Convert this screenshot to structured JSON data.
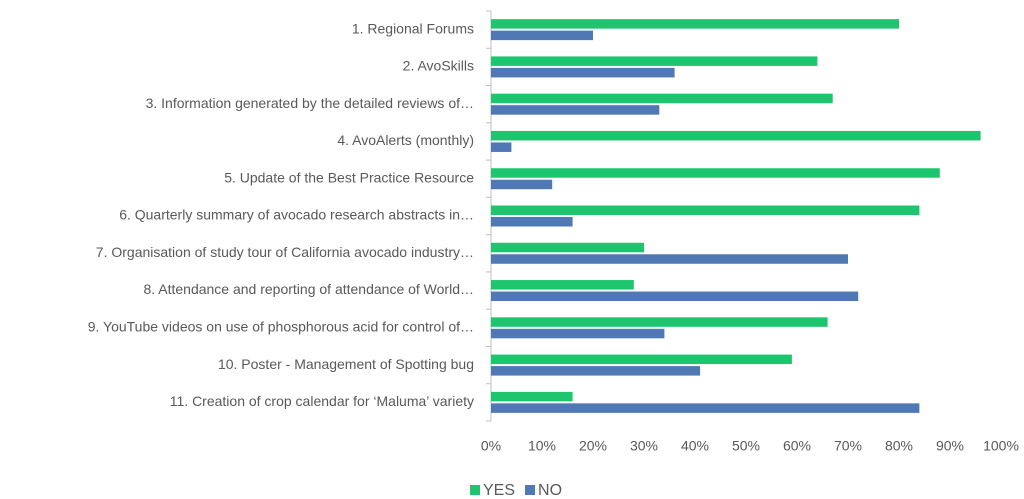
{
  "chart_data": {
    "type": "hbar",
    "categories": [
      "1. Regional Forums",
      "2. AvoSkills",
      "3. Information generated by the detailed reviews of…",
      "4. AvoAlerts (monthly)",
      "5. Update of the Best Practice Resource",
      "6. Quarterly summary of avocado research abstracts in…",
      "7. Organisation of study tour of California avocado industry…",
      "8. Attendance and reporting of attendance of World…",
      "9. YouTube videos on use of phosphorous acid for control of…",
      "10. Poster - Management of Spotting bug",
      "11. Creation of crop calendar for ‘Maluma’ variety"
    ],
    "series": [
      {
        "name": "YES",
        "color": "#1dc66e",
        "values": [
          80,
          64,
          67,
          96,
          88,
          84,
          30,
          28,
          66,
          59,
          16
        ]
      },
      {
        "name": "NO",
        "color": "#4f78b5",
        "values": [
          20,
          36,
          33,
          4,
          12,
          16,
          70,
          72,
          34,
          41,
          84
        ]
      }
    ],
    "xlim": [
      0,
      100
    ],
    "xticks": [
      {
        "value": 0,
        "label": "0%"
      },
      {
        "value": 10,
        "label": "10%"
      },
      {
        "value": 20,
        "label": "20%"
      },
      {
        "value": 30,
        "label": "30%"
      },
      {
        "value": 40,
        "label": "40%"
      },
      {
        "value": 50,
        "label": "50%"
      },
      {
        "value": 60,
        "label": "60%"
      },
      {
        "value": 70,
        "label": "70%"
      },
      {
        "value": 80,
        "label": "80%"
      },
      {
        "value": 90,
        "label": "90%"
      },
      {
        "value": 100,
        "label": "100%"
      }
    ],
    "grid": false,
    "legend": "bottom"
  }
}
